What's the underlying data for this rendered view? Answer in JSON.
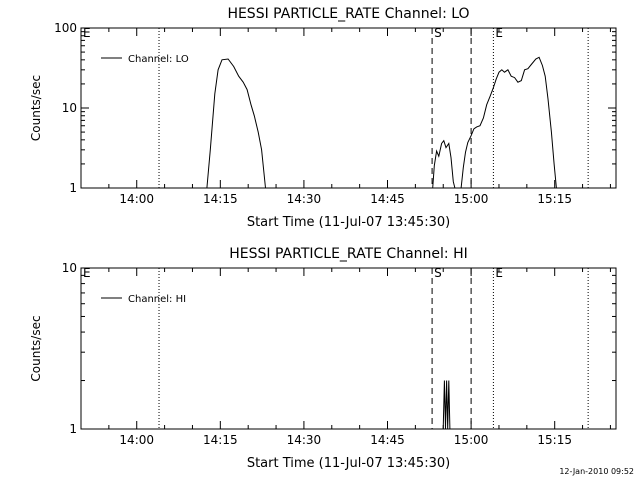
{
  "footer": {
    "stamp": "12-Jan-2010 09:52"
  },
  "chart_data": [
    {
      "type": "line",
      "title": "HESSI PARTICLE_RATE Channel: LO",
      "xlabel": "Start Time (11-Jul-07 13:45:30)",
      "ylabel": "Counts/sec",
      "yscale": "log",
      "ylim": [
        1,
        100
      ],
      "xlim": [
        "13:50",
        "15:26"
      ],
      "xticks": [
        "14:00",
        "14:15",
        "14:30",
        "14:45",
        "15:00",
        "15:15"
      ],
      "yticks": [
        "1",
        "10",
        "100"
      ],
      "legend": {
        "position": "top-left",
        "entries": [
          "Channel: LO"
        ]
      },
      "markers": [
        {
          "label": "E",
          "time": "13:50",
          "style": "dotted"
        },
        {
          "label": "",
          "time": "14:04",
          "style": "dotted"
        },
        {
          "label": "S",
          "time": "14:53",
          "style": "dashed"
        },
        {
          "label": "",
          "time": "15:00",
          "style": "dashed"
        },
        {
          "label": "E",
          "time": "15:04",
          "style": "dotted"
        },
        {
          "label": "",
          "time": "15:21",
          "style": "dotted"
        }
      ],
      "series": [
        {
          "name": "Channel: LO",
          "segments": [
            [
              [
                "14:12.6",
                1
              ],
              [
                "14:13.2",
                3
              ],
              [
                "14:14.0",
                15
              ],
              [
                "14:14.6",
                30
              ],
              [
                "14:15.3",
                40
              ],
              [
                "14:16.4",
                41
              ],
              [
                "14:17.4",
                33
              ],
              [
                "14:18.3",
                25
              ],
              [
                "14:19.1",
                21
              ],
              [
                "14:19.8",
                17
              ],
              [
                "14:20.5",
                11
              ],
              [
                "14:21.1",
                8
              ],
              [
                "14:21.8",
                5
              ],
              [
                "14:22.4",
                3
              ],
              [
                "14:23.1",
                1
              ]
            ],
            [
              [
                "14:53.1",
                1
              ],
              [
                "14:53.4",
                1.9
              ],
              [
                "14:53.8",
                2.9
              ],
              [
                "14:54.2",
                2.5
              ],
              [
                "14:54.7",
                3.6
              ],
              [
                "14:55.1",
                3.9
              ],
              [
                "14:55.5",
                3.2
              ],
              [
                "14:56.0",
                3.6
              ],
              [
                "14:56.4",
                2.4
              ],
              [
                "14:56.8",
                1.2
              ],
              [
                "14:57.1",
                1
              ],
              [
                "14:58.2",
                1
              ],
              [
                "14:58.6",
                1.8
              ],
              [
                "14:59.0",
                2.8
              ],
              [
                "14:59.4",
                3.7
              ],
              [
                "15:00.0",
                4.5
              ],
              [
                "15:00.5",
                5.5
              ],
              [
                "15:01.0",
                5.8
              ],
              [
                "15:01.6",
                6
              ],
              [
                "15:02.2",
                7.5
              ],
              [
                "15:02.8",
                11
              ],
              [
                "15:03.4",
                14
              ],
              [
                "15:04.0",
                18
              ],
              [
                "15:04.5",
                23
              ],
              [
                "15:05.0",
                28
              ],
              [
                "15:05.5",
                30
              ],
              [
                "15:06.0",
                28
              ],
              [
                "15:06.6",
                30
              ],
              [
                "15:07.2",
                25
              ],
              [
                "15:07.8",
                24
              ],
              [
                "15:08.4",
                21
              ],
              [
                "15:09.0",
                22
              ],
              [
                "15:09.6",
                30
              ],
              [
                "15:10.2",
                31
              ],
              [
                "15:10.8",
                35
              ],
              [
                "15:11.6",
                41
              ],
              [
                "15:12.2",
                43
              ],
              [
                "15:12.8",
                34
              ],
              [
                "15:13.3",
                25
              ],
              [
                "15:13.8",
                13
              ],
              [
                "15:14.4",
                5
              ],
              [
                "15:14.9",
                2
              ],
              [
                "15:15.3",
                1
              ]
            ]
          ]
        }
      ]
    },
    {
      "type": "line",
      "title": "HESSI PARTICLE_RATE Channel: HI",
      "xlabel": "Start Time (11-Jul-07 13:45:30)",
      "ylabel": "Counts/sec",
      "yscale": "log",
      "ylim": [
        1,
        10
      ],
      "xlim": [
        "13:50",
        "15:26"
      ],
      "xticks": [
        "14:00",
        "14:15",
        "14:30",
        "14:45",
        "15:00",
        "15:15"
      ],
      "yticks": [
        "1",
        "10"
      ],
      "legend": {
        "position": "top-left",
        "entries": [
          "Channel: HI"
        ]
      },
      "markers": [
        {
          "label": "E",
          "time": "13:50",
          "style": "dotted"
        },
        {
          "label": "",
          "time": "14:04",
          "style": "dotted"
        },
        {
          "label": "S",
          "time": "14:53",
          "style": "dashed"
        },
        {
          "label": "",
          "time": "15:00",
          "style": "dashed"
        },
        {
          "label": "E",
          "time": "15:04",
          "style": "dotted"
        },
        {
          "label": "",
          "time": "15:21",
          "style": "dotted"
        }
      ],
      "series": [
        {
          "name": "Channel: HI",
          "segments": [
            [
              [
                "14:55.0",
                1
              ],
              [
                "14:55.2",
                2
              ],
              [
                "14:55.4",
                1
              ],
              [
                "14:55.6",
                2
              ],
              [
                "14:55.8",
                1
              ],
              [
                "14:56.0",
                2
              ],
              [
                "14:56.2",
                1
              ]
            ]
          ]
        }
      ]
    }
  ]
}
